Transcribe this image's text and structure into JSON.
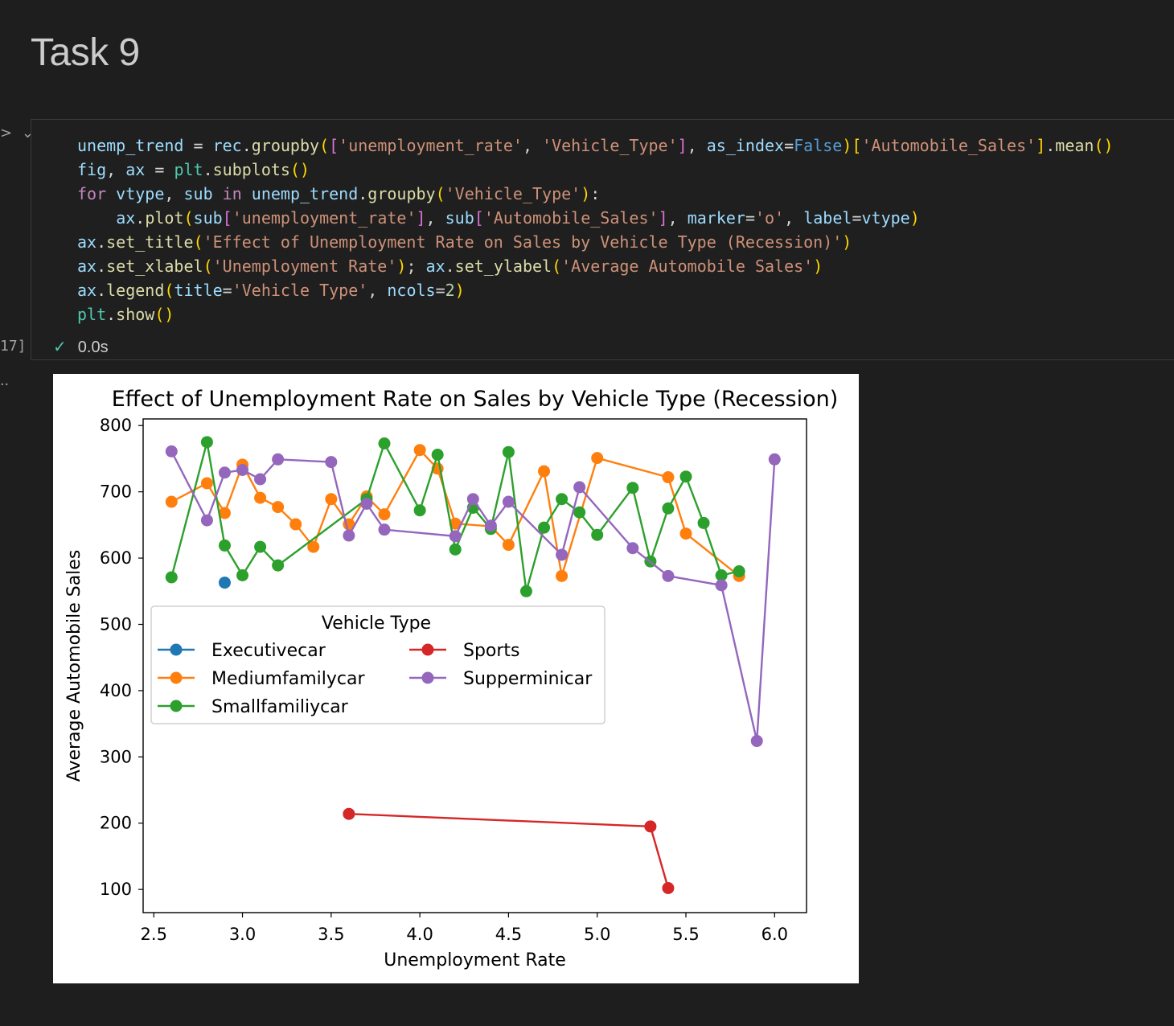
{
  "heading": "Task 9",
  "cell": {
    "execution_count": "17]",
    "status_time": "0.0s",
    "output_prompt": "..",
    "code_lines": [
      "unemp_trend = rec.groupby(['unemployment_rate', 'Vehicle_Type'], as_index=False)['Automobile_Sales'].mean()",
      "fig, ax = plt.subplots()",
      "for vtype, sub in unemp_trend.groupby('Vehicle_Type'):",
      "    ax.plot(sub['unemployment_rate'], sub['Automobile_Sales'], marker='o', label=vtype)",
      "ax.set_title('Effect of Unemployment Rate on Sales by Vehicle Type (Recession)')",
      "ax.set_xlabel('Unemployment Rate'); ax.set_ylabel('Average Automobile Sales')",
      "ax.legend(title='Vehicle Type', ncols=2)",
      "plt.show()"
    ]
  },
  "chart_data": {
    "type": "line",
    "title": "Effect of Unemployment Rate on Sales by Vehicle Type (Recession)",
    "xlabel": "Unemployment Rate",
    "ylabel": "Average Automobile Sales",
    "xlim": [
      2.44,
      6.18
    ],
    "ylim": [
      65,
      810
    ],
    "xticks": [
      "2.5",
      "3.0",
      "3.5",
      "4.0",
      "4.5",
      "5.0",
      "5.5",
      "6.0"
    ],
    "yticks": [
      "100",
      "200",
      "300",
      "400",
      "500",
      "600",
      "700",
      "800"
    ],
    "grid": false,
    "legend": {
      "title": "Vehicle Type",
      "placement": "center-left",
      "ncols": 2
    },
    "series": [
      {
        "name": "Executivecar",
        "color": "#1f77b4",
        "x": [
          2.9
        ],
        "y": [
          563
        ]
      },
      {
        "name": "Mediumfamilycar",
        "color": "#ff7f0e",
        "x": [
          2.6,
          2.8,
          2.9,
          3.0,
          3.1,
          3.2,
          3.3,
          3.4,
          3.5,
          3.6,
          3.7,
          3.8,
          4.0,
          4.1,
          4.2,
          4.4,
          4.5,
          4.7,
          4.8,
          5.0,
          5.4,
          5.5,
          5.8
        ],
        "y": [
          685,
          713,
          668,
          741,
          691,
          677,
          651,
          617,
          689,
          651,
          693,
          666,
          763,
          735,
          652,
          648,
          620,
          731,
          573,
          751,
          722,
          637,
          573
        ]
      },
      {
        "name": "Smallfamiliycar",
        "color": "#2ca02c",
        "x": [
          2.6,
          2.8,
          2.9,
          3.0,
          3.1,
          3.2,
          3.7,
          3.8,
          4.0,
          4.1,
          4.2,
          4.3,
          4.4,
          4.5,
          4.6,
          4.7,
          4.8,
          4.9,
          5.0,
          5.2,
          5.3,
          5.4,
          5.5,
          5.6,
          5.7,
          5.8
        ],
        "y": [
          571,
          775,
          619,
          574,
          617,
          589,
          689,
          773,
          672,
          756,
          613,
          676,
          644,
          760,
          550,
          646,
          689,
          669,
          635,
          706,
          595,
          675,
          723,
          653,
          574,
          580
        ]
      },
      {
        "name": "Sports",
        "color": "#d62728",
        "x": [
          3.6,
          5.3,
          5.4
        ],
        "y": [
          214,
          195,
          102
        ]
      },
      {
        "name": "Supperminicar",
        "color": "#9467bd",
        "x": [
          2.6,
          2.8,
          2.9,
          3.0,
          3.1,
          3.2,
          3.5,
          3.6,
          3.7,
          3.8,
          4.2,
          4.3,
          4.4,
          4.5,
          4.8,
          4.9,
          5.2,
          5.4,
          5.7,
          5.9,
          6.0
        ],
        "y": [
          761,
          657,
          729,
          733,
          719,
          749,
          745,
          634,
          682,
          643,
          633,
          689,
          649,
          685,
          605,
          707,
          615,
          573,
          559,
          324,
          749
        ]
      }
    ]
  }
}
